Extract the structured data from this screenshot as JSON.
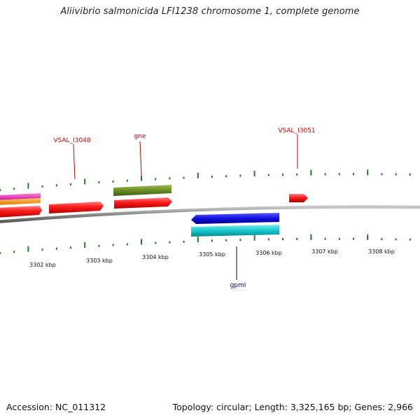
{
  "header": {
    "title": "Aliivibrio salmonicida LFI1238 chromosome 1, complete genome"
  },
  "footer": {
    "accession": "Accession: NC_011312",
    "summary": "Topology: circular; Length: 3,325,165 bp; Genes: 2,966"
  },
  "colors": {
    "backbone": "#8c8c8c",
    "tick": "#1f7a1f",
    "forward_label": "#cc0000",
    "reverse_label": "#00008b"
  },
  "scale": {
    "tick_labels": [
      "3302 kbp",
      "3303 kbp",
      "3304 kbp",
      "3305 kbp",
      "3306 kbp",
      "3307 kbp",
      "3308 kbp"
    ]
  },
  "genes": [
    {
      "label": "VSAL_I3048",
      "color": "#ff1a1a",
      "strand": "forward"
    },
    {
      "label": "gne",
      "color": "#6b8e23",
      "strand": "forward"
    },
    {
      "label": "VSAL_I3051",
      "color": "#ff1a1a",
      "strand": "forward"
    },
    {
      "label": "gpmI",
      "color": "#1010e0",
      "strand": "reverse"
    }
  ]
}
